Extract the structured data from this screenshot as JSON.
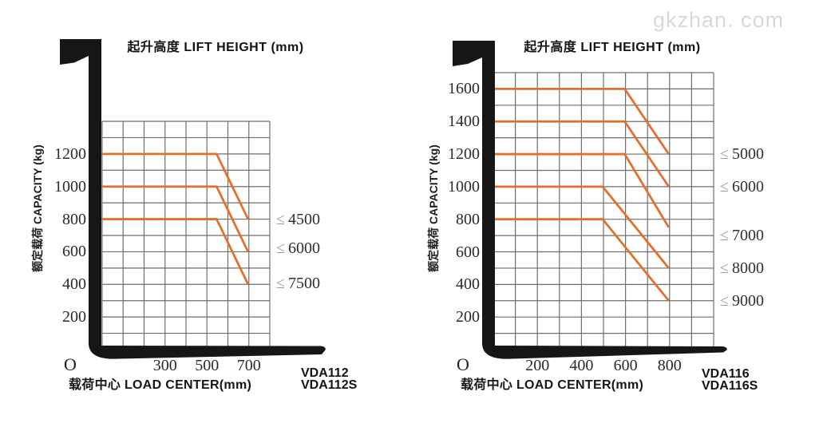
{
  "watermark": "gkzhan. com",
  "colors": {
    "curve_orange": "#e2702d",
    "grid_gray": "#6e6e6e",
    "mast_black": "#161616",
    "leq_gray": "#9c9c9c",
    "watermark_gray": "#d8d8d8"
  },
  "chart_data": [
    {
      "type": "line",
      "title": "起升高度  LIFT HEIGHT (mm)",
      "ylabel": "额定载荷 CAPACITY (kg)",
      "xlabel": "载荷中心  LOAD CENTER(mm)",
      "origin": "O",
      "models": [
        "VDA112",
        "VDA112S"
      ],
      "xlim": [
        0,
        800
      ],
      "ylim": [
        0,
        1400
      ],
      "x_ticks": [
        300,
        500,
        700
      ],
      "y_ticks": [
        1200,
        1000,
        800,
        600,
        400,
        200
      ],
      "grid": true,
      "legend_position": "right of plot",
      "series": [
        {
          "label_prefix": "≤",
          "label_value": "4500",
          "label_at": 800,
          "points": [
            [
              0,
              1200
            ],
            [
              550,
              1200
            ],
            [
              700,
              800
            ]
          ]
        },
        {
          "label_prefix": "≤",
          "label_value": "6000",
          "label_at": 620,
          "points": [
            [
              0,
              1000
            ],
            [
              550,
              1000
            ],
            [
              700,
              600
            ]
          ]
        },
        {
          "label_prefix": "≤",
          "label_value": "7500",
          "label_at": 405,
          "points": [
            [
              0,
              800
            ],
            [
              550,
              800
            ],
            [
              700,
              400
            ]
          ]
        }
      ]
    },
    {
      "type": "line",
      "title": "起升高度  LIFT HEIGHT (mm)",
      "ylabel": "额定载荷 CAPACITY (kg)",
      "xlabel": "载荷中心  LOAD CENTER(mm)",
      "origin": "O",
      "models": [
        "VDA116",
        "VDA116S"
      ],
      "xlim": [
        0,
        1000
      ],
      "ylim": [
        0,
        1700
      ],
      "x_ticks": [
        200,
        400,
        600,
        800
      ],
      "y_ticks": [
        1600,
        1400,
        1200,
        1000,
        800,
        600,
        400,
        200
      ],
      "grid": true,
      "legend_position": "right of plot",
      "series": [
        {
          "label_prefix": "≤",
          "label_value": "5000",
          "label_at": 1200,
          "points": [
            [
              0,
              1600
            ],
            [
              600,
              1600
            ],
            [
              800,
              1200
            ]
          ]
        },
        {
          "label_prefix": "≤",
          "label_value": "6000",
          "label_at": 1000,
          "points": [
            [
              0,
              1400
            ],
            [
              600,
              1400
            ],
            [
              800,
              1000
            ]
          ]
        },
        {
          "label_prefix": "≤",
          "label_value": "7000",
          "label_at": 700,
          "points": [
            [
              0,
              1200
            ],
            [
              600,
              1200
            ],
            [
              800,
              750
            ]
          ]
        },
        {
          "label_prefix": "≤",
          "label_value": "8000",
          "label_at": 500,
          "points": [
            [
              0,
              1000
            ],
            [
              500,
              1000
            ],
            [
              800,
              500
            ]
          ]
        },
        {
          "label_prefix": "≤",
          "label_value": "9000",
          "label_at": 300,
          "points": [
            [
              0,
              800
            ],
            [
              500,
              800
            ],
            [
              800,
              300
            ]
          ]
        }
      ]
    }
  ]
}
